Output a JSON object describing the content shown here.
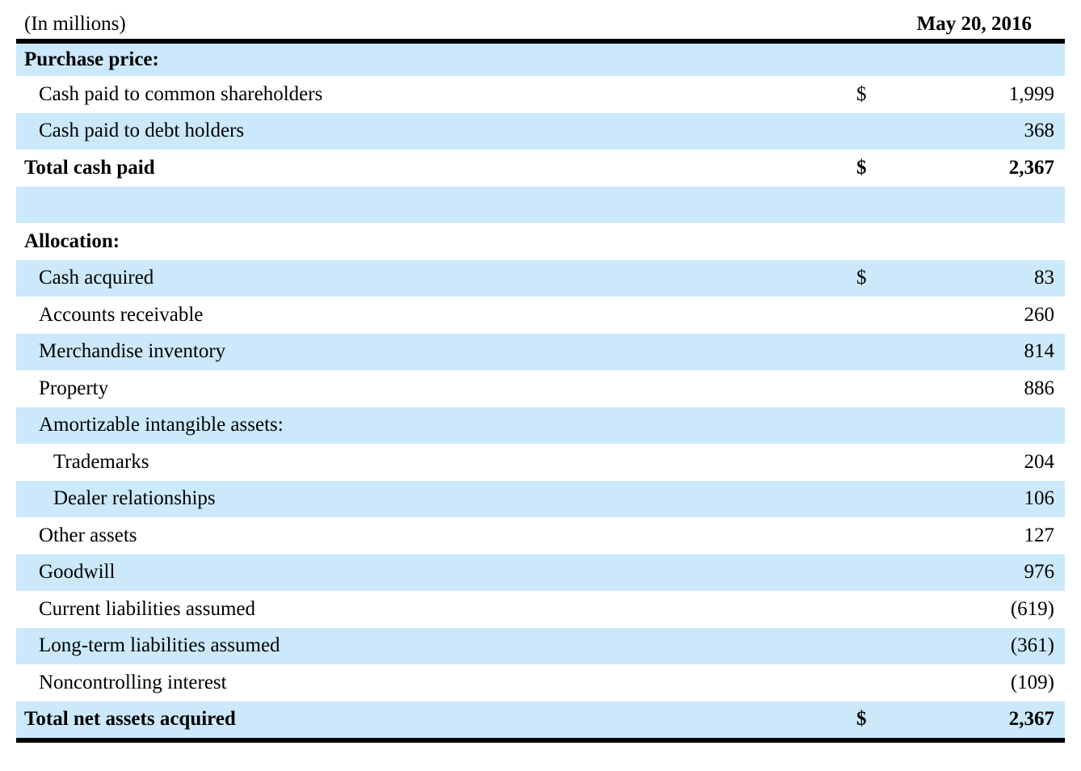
{
  "header": {
    "units_label": "(In millions)",
    "date_header": "May 20, 2016"
  },
  "colors": {
    "row_shade": "#cbe9fa",
    "rule": "#000000",
    "page_background": "#ffffff",
    "text": "#000000"
  },
  "table": {
    "columns": [
      "label",
      "currency",
      "value"
    ],
    "rows": [
      {
        "label": "Purchase price:",
        "currency": "",
        "value": "",
        "bold": true,
        "indent": 0,
        "shaded": true,
        "blank": false
      },
      {
        "label": "Cash paid to common shareholders",
        "currency": "$",
        "value": "1,999",
        "bold": false,
        "indent": 1,
        "shaded": false,
        "blank": false
      },
      {
        "label": "Cash paid to debt holders",
        "currency": "",
        "value": "368",
        "bold": false,
        "indent": 1,
        "shaded": true,
        "blank": false
      },
      {
        "label": "Total cash paid",
        "currency": "$",
        "value": "2,367",
        "bold": true,
        "indent": 0,
        "shaded": false,
        "blank": false
      },
      {
        "label": "",
        "currency": "",
        "value": "",
        "bold": false,
        "indent": 0,
        "shaded": true,
        "blank": true
      },
      {
        "label": "Allocation:",
        "currency": "",
        "value": "",
        "bold": true,
        "indent": 0,
        "shaded": false,
        "blank": false
      },
      {
        "label": "Cash acquired",
        "currency": "$",
        "value": "83",
        "bold": false,
        "indent": 1,
        "shaded": true,
        "blank": false
      },
      {
        "label": "Accounts receivable",
        "currency": "",
        "value": "260",
        "bold": false,
        "indent": 1,
        "shaded": false,
        "blank": false
      },
      {
        "label": "Merchandise inventory",
        "currency": "",
        "value": "814",
        "bold": false,
        "indent": 1,
        "shaded": true,
        "blank": false
      },
      {
        "label": "Property",
        "currency": "",
        "value": "886",
        "bold": false,
        "indent": 1,
        "shaded": false,
        "blank": false
      },
      {
        "label": "Amortizable intangible assets:",
        "currency": "",
        "value": "",
        "bold": false,
        "indent": 1,
        "shaded": true,
        "blank": false
      },
      {
        "label": "Trademarks",
        "currency": "",
        "value": "204",
        "bold": false,
        "indent": 2,
        "shaded": false,
        "blank": false
      },
      {
        "label": "Dealer relationships",
        "currency": "",
        "value": "106",
        "bold": false,
        "indent": 2,
        "shaded": true,
        "blank": false
      },
      {
        "label": "Other assets",
        "currency": "",
        "value": "127",
        "bold": false,
        "indent": 1,
        "shaded": false,
        "blank": false
      },
      {
        "label": "Goodwill",
        "currency": "",
        "value": "976",
        "bold": false,
        "indent": 1,
        "shaded": true,
        "blank": false
      },
      {
        "label": "Current liabilities assumed",
        "currency": "",
        "value": "(619)",
        "bold": false,
        "indent": 1,
        "shaded": false,
        "blank": false
      },
      {
        "label": "Long-term liabilities assumed",
        "currency": "",
        "value": "(361)",
        "bold": false,
        "indent": 1,
        "shaded": true,
        "blank": false
      },
      {
        "label": "Noncontrolling interest",
        "currency": "",
        "value": "(109)",
        "bold": false,
        "indent": 1,
        "shaded": false,
        "blank": false
      },
      {
        "label": "Total net assets acquired",
        "currency": "$",
        "value": "2,367",
        "bold": true,
        "indent": 0,
        "shaded": true,
        "blank": false
      }
    ]
  }
}
